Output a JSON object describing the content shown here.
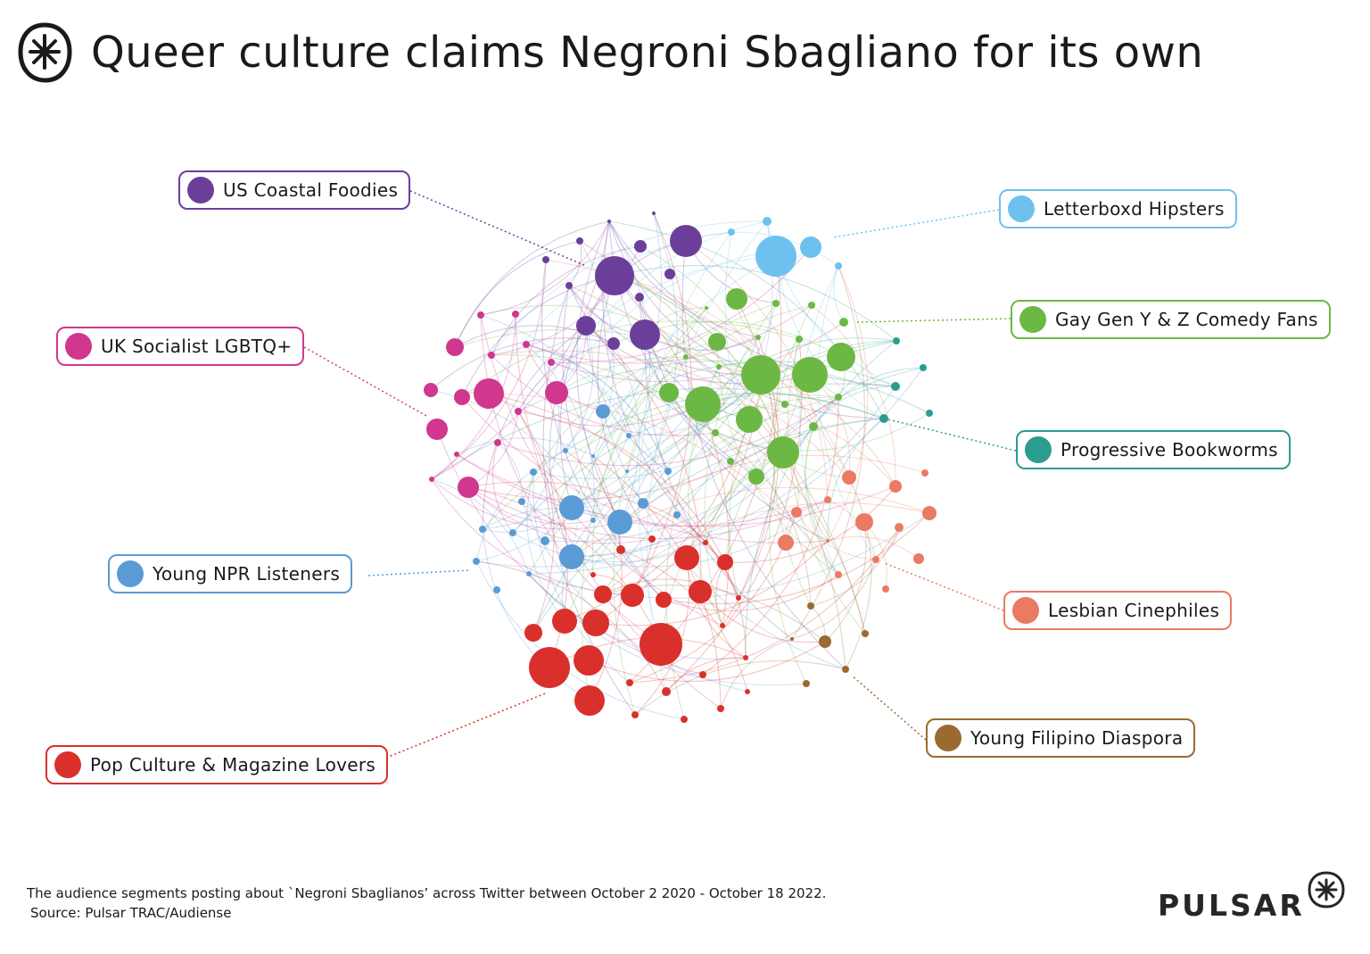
{
  "title": "Queer culture claims Negroni Sbagliano for its own",
  "icons": {
    "title_logo": "circled-asterisk-logo-icon",
    "brand_logo": "asterisk-star-icon"
  },
  "segments": [
    {
      "id": "coastal",
      "label": "US Coastal Foodies",
      "color": "#6b3f99"
    },
    {
      "id": "letterbox",
      "label": "Letterboxd Hipsters",
      "color": "#6ec1ef"
    },
    {
      "id": "gaygenyz",
      "label": "Gay Gen Y & Z Comedy Fans",
      "color": "#6cb844"
    },
    {
      "id": "uklgbtq",
      "label": "UK Socialist LGBTQ+",
      "color": "#d1378e"
    },
    {
      "id": "bookworms",
      "label": "Progressive Bookworms",
      "color": "#2a9d8f"
    },
    {
      "id": "npr",
      "label": "Young NPR Listeners",
      "color": "#5b9bd5"
    },
    {
      "id": "lesbian",
      "label": "Lesbian Cinephiles",
      "color": "#ea7a62"
    },
    {
      "id": "filipino",
      "label": "Young Filipino Diaspora",
      "color": "#9a6a32"
    },
    {
      "id": "popculture",
      "label": "Pop Culture & Magazine Lovers",
      "color": "#d9302c"
    }
  ],
  "footnote": {
    "line1": "The audience segments posting about `Negroni Sbaglianos’ across Twitter between October 2 2020 - October 18 2022.",
    "line2": "Source: Pulsar TRAC/Audiense"
  },
  "brand": {
    "name": "PULSAR"
  }
}
